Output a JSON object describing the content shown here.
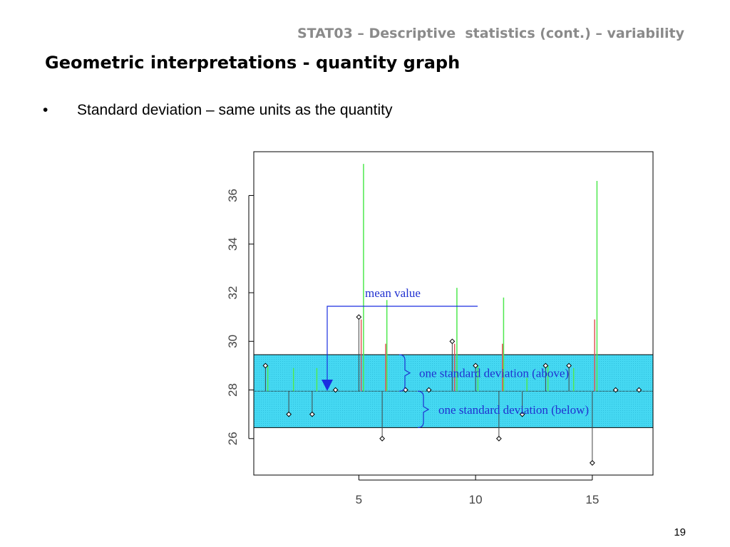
{
  "slide": {
    "course": "STAT03 – Descriptive  statistics (cont.) – variability",
    "title": "Geometric interpretations - quantity graph",
    "bullet_symbol": "•",
    "bullet": "Standard deviation – same units as the quantity",
    "page_number": "19"
  },
  "chart_data": {
    "type": "scatter",
    "title": "",
    "xlabel": "",
    "ylabel": "",
    "xlim": [
      0.5,
      17.6
    ],
    "ylim": [
      24.5,
      37.8
    ],
    "x_ticks": [
      5,
      10,
      15
    ],
    "y_ticks": [
      26,
      28,
      30,
      32,
      34,
      36
    ],
    "grid": false,
    "mean": 27.95,
    "sd": 1.5,
    "points": [
      {
        "x": 1,
        "y": 29
      },
      {
        "x": 2,
        "y": 27
      },
      {
        "x": 3,
        "y": 27
      },
      {
        "x": 4,
        "y": 28
      },
      {
        "x": 5,
        "y": 31
      },
      {
        "x": 6,
        "y": 26
      },
      {
        "x": 7,
        "y": 28
      },
      {
        "x": 8,
        "y": 28
      },
      {
        "x": 9,
        "y": 30
      },
      {
        "x": 10,
        "y": 29
      },
      {
        "x": 11,
        "y": 26
      },
      {
        "x": 12,
        "y": 27
      },
      {
        "x": 13,
        "y": 29
      },
      {
        "x": 14,
        "y": 29
      },
      {
        "x": 15,
        "y": 25
      },
      {
        "x": 16,
        "y": 28
      },
      {
        "x": 17,
        "y": 28
      }
    ],
    "green_lines": [
      {
        "x": 1.1,
        "top": 29.0
      },
      {
        "x": 2.2,
        "top": 28.9
      },
      {
        "x": 3.2,
        "top": 28.9
      },
      {
        "x": 5.2,
        "top": 37.3
      },
      {
        "x": 6.2,
        "top": 31.7
      },
      {
        "x": 9.2,
        "top": 32.2
      },
      {
        "x": 10.1,
        "top": 29.0
      },
      {
        "x": 11.2,
        "top": 31.8
      },
      {
        "x": 12.2,
        "top": 28.5
      },
      {
        "x": 13.1,
        "top": 29.0
      },
      {
        "x": 14.2,
        "top": 28.9
      },
      {
        "x": 15.2,
        "top": 36.6
      }
    ],
    "red_lines": [
      {
        "x": 5.1,
        "top": 30.9
      },
      {
        "x": 6.15,
        "top": 29.9
      },
      {
        "x": 9.1,
        "top": 29.9
      },
      {
        "x": 11.15,
        "top": 29.9
      },
      {
        "x": 15.1,
        "top": 30.9
      }
    ],
    "annotations": {
      "mean_label": "mean value",
      "sd_above_label": "one standard deviation (above)",
      "sd_below_label": "one standard deviation (below)"
    },
    "colors": {
      "band": "#45d8f2",
      "band_hatch": "#2fc0de",
      "green_line": "#4ee84e",
      "red_line": "#e05555",
      "annotation": "#2030d0",
      "arrow": "#1a2fe0",
      "point": "#000000",
      "stem": "#444444"
    }
  }
}
